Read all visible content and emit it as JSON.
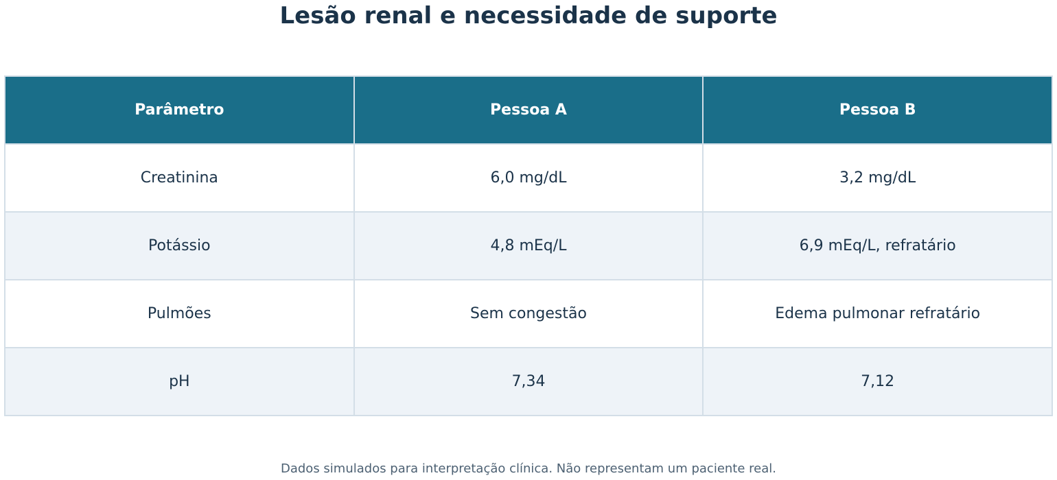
{
  "title": "Lesão renal e necessidade de suporte",
  "footnote": "Dados simulados para interpretação clínica. Não representam um paciente real.",
  "colors": {
    "header_bg": "#1a6e89",
    "header_text": "#ffffff",
    "title": "#1b3349",
    "row_alt": "#eef3f8",
    "border": "#d3dee7"
  },
  "chart_data": {
    "type": "table",
    "title": "Lesão renal e necessidade de suporte",
    "columns": [
      "Parâmetro",
      "Pessoa A",
      "Pessoa B"
    ],
    "rows": [
      [
        "Creatinina",
        "6,0 mg/dL",
        "3,2 mg/dL"
      ],
      [
        "Potássio",
        "4,8 mEq/L",
        "6,9 mEq/L, refratário"
      ],
      [
        "Pulmões",
        "Sem congestão",
        "Edema pulmonar refratário"
      ],
      [
        "pH",
        "7,34",
        "7,12"
      ]
    ]
  }
}
